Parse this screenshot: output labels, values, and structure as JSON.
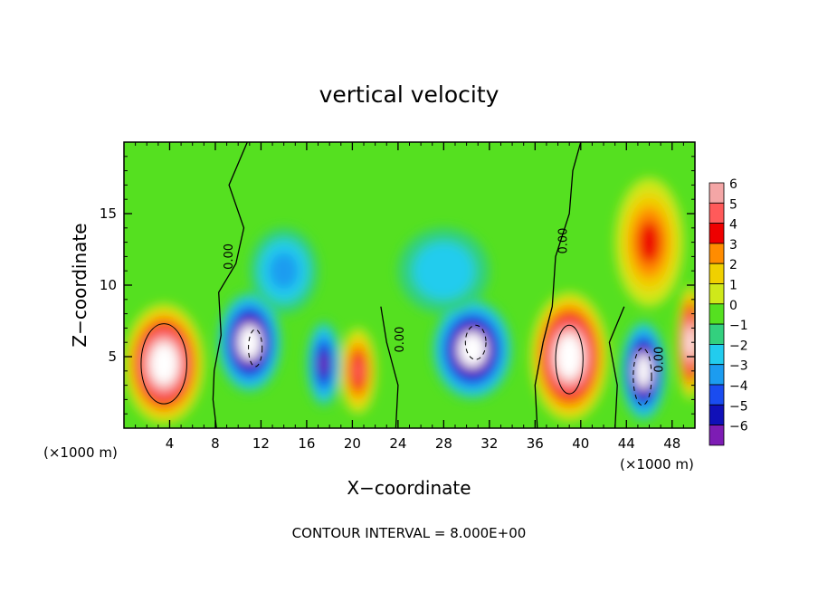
{
  "chart_data": {
    "type": "heatmap",
    "title": "vertical velocity",
    "xlabel": "X−coordinate",
    "ylabel": "Z−coordinate",
    "x_unit_left": "(×1000 m)",
    "x_unit_right": "(×1000 m)",
    "footnote": "CONTOUR INTERVAL = 8.000E+00",
    "xlim": [
      0,
      50
    ],
    "ylim": [
      0,
      20
    ],
    "xticks": [
      "4",
      "8",
      "12",
      "16",
      "20",
      "24",
      "28",
      "32",
      "36",
      "40",
      "44",
      "48"
    ],
    "xtick_values": [
      4,
      8,
      12,
      16,
      20,
      24,
      28,
      32,
      36,
      40,
      44,
      48
    ],
    "yticks": [
      "5",
      "10",
      "15"
    ],
    "ytick_values": [
      5,
      10,
      15
    ],
    "contour_labels": [
      {
        "text": "0.00",
        "x": 9.5,
        "z": 12.0
      },
      {
        "text": "0.00",
        "x": 24.5,
        "z": 6.2
      },
      {
        "text": "0.00",
        "x": 38.8,
        "z": 13.1
      },
      {
        "text": "0.00",
        "x": 47.2,
        "z": 4.8
      }
    ],
    "colorbar": {
      "labels": [
        "6",
        "5",
        "4",
        "3",
        "2",
        "1",
        "0",
        "−1",
        "−2",
        "−3",
        "−4",
        "−5",
        "−6"
      ],
      "levels": [
        6,
        5,
        4,
        3,
        2,
        1,
        0,
        -1,
        -2,
        -3,
        -4,
        -5,
        -6
      ],
      "colors": [
        "#f4a6a6",
        "#ff5a5a",
        "#ee0000",
        "#ff8c00",
        "#f0d000",
        "#cfe81a",
        "#55e020",
        "#33d07e",
        "#22ccee",
        "#1c9cf0",
        "#1a4cf0",
        "#1010b8",
        "#7d1cb4"
      ]
    },
    "features": [
      {
        "kind": "updraft",
        "x": 3.5,
        "z": 4.5,
        "rx": 3.5,
        "rz": 4.2,
        "peak": 9
      },
      {
        "kind": "updraft",
        "x": 39.0,
        "z": 5.0,
        "rx": 3.4,
        "rz": 4.5,
        "peak": 9
      },
      {
        "kind": "updraft",
        "x": 49.6,
        "z": 6.0,
        "rx": 1.2,
        "rz": 4.0,
        "peak": 8
      },
      {
        "kind": "updraft",
        "x": 20.5,
        "z": 4.0,
        "rx": 1.6,
        "rz": 3.0,
        "peak": 5
      },
      {
        "kind": "updraft",
        "x": 46.0,
        "z": 13.0,
        "rx": 3.0,
        "rz": 4.5,
        "peak": 4
      },
      {
        "kind": "downdraft",
        "x": 11.0,
        "z": 6.0,
        "rx": 2.8,
        "rz": 3.5,
        "peak": -9
      },
      {
        "kind": "downdraft",
        "x": 30.5,
        "z": 5.5,
        "rx": 3.5,
        "rz": 3.5,
        "peak": -9
      },
      {
        "kind": "downdraft",
        "x": 45.5,
        "z": 4.0,
        "rx": 2.0,
        "rz": 3.5,
        "peak": -9
      },
      {
        "kind": "downdraft",
        "x": 17.5,
        "z": 4.5,
        "rx": 1.5,
        "rz": 3.0,
        "peak": -6
      },
      {
        "kind": "downdraft",
        "x": 14.0,
        "z": 11.0,
        "rx": 3.0,
        "rz": 3.0,
        "peak": -3
      },
      {
        "kind": "downdraft",
        "x": 28.0,
        "z": 11.0,
        "rx": 4.0,
        "rz": 3.0,
        "peak": -2.5
      }
    ]
  }
}
